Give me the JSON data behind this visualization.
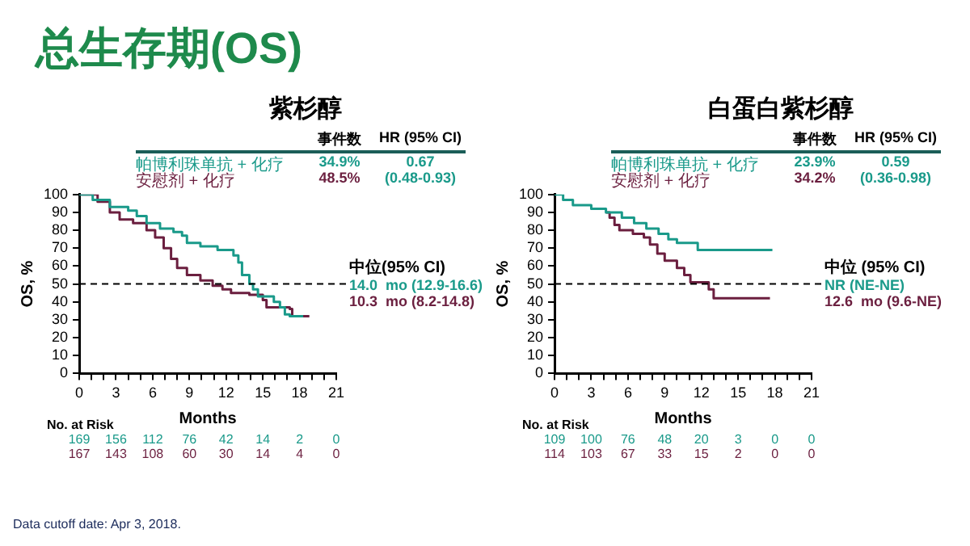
{
  "chart_data": [
    {
      "type": "other",
      "title": "总生存期(OS)",
      "annotations": [
        "Data cutoff date: Apr 3, 2018."
      ]
    },
    {
      "type": "step",
      "title": "紫杉醇",
      "xlabel": "Months",
      "ylabel": "OS, %",
      "xlim": [
        0,
        21
      ],
      "ylim": [
        0,
        100
      ],
      "xticks": [
        0,
        {
          "value": 1,
          "label": null
        },
        {
          "value": 2,
          "label": null
        },
        3,
        {
          "value": 4,
          "label": null
        },
        {
          "value": 5,
          "label": null
        },
        6,
        {
          "value": 7,
          "label": null
        },
        {
          "value": 8,
          "label": null
        },
        9,
        {
          "value": 10,
          "label": null
        },
        {
          "value": 11,
          "label": null
        },
        12,
        {
          "value": 13,
          "label": null
        },
        {
          "value": 14,
          "label": null
        },
        15,
        {
          "value": 16,
          "label": null
        },
        {
          "value": 17,
          "label": null
        },
        18,
        {
          "value": 19,
          "label": null
        },
        {
          "value": 20,
          "label": null
        },
        21
      ],
      "yticks": [
        0,
        10,
        20,
        30,
        40,
        50,
        60,
        70,
        80,
        90,
        100
      ],
      "ref_lines": [
        {
          "axis": "y",
          "value": 50,
          "color": "#000000",
          "line_style": "dashed"
        }
      ],
      "series": [
        {
          "name": "帕博利珠单抗 + 化疗",
          "color": "#1a9a8a",
          "x": [
            0,
            1.1,
            2.5,
            4,
            4.7,
            5.5,
            6.6,
            7.7,
            8.4,
            8.8,
            9.9,
            11.3,
            12.6,
            13,
            13.3,
            13.9,
            14.2,
            14.6,
            15.9,
            16.4,
            16.8,
            17.2,
            18.3
          ],
          "values": [
            100,
            97,
            93,
            91,
            88,
            84,
            81,
            79,
            77,
            73,
            71,
            69,
            66,
            62,
            55,
            50,
            47,
            43,
            40,
            37,
            33,
            32,
            32
          ]
        },
        {
          "name": "安慰剂 + 化疗",
          "color": "#6b1f3f",
          "x": [
            0,
            1.5,
            2.5,
            3.3,
            4.4,
            5.5,
            6.2,
            6.9,
            7.5,
            8,
            8.8,
            9.9,
            10.9,
            11.7,
            12.4,
            13.9,
            15,
            15.3,
            17.2,
            17.4,
            18.8
          ],
          "values": [
            100,
            96,
            90,
            86,
            84,
            80,
            76,
            70,
            64,
            59,
            55,
            52,
            49,
            47,
            45,
            44,
            41,
            37,
            36,
            32,
            32
          ]
        }
      ],
      "annotations": [
        "事件数",
        "HR (95% CI)",
        "34.9%",
        "0.67",
        "(0.48-0.93)",
        "48.5%",
        "中位(95% CI)",
        "14.0  mo (12.9-16.6)",
        "10.3  mo (8.2-14.8)",
        "No. at Risk",
        "169",
        "156",
        "112",
        "76",
        "42",
        "14",
        "2",
        "0",
        "167",
        "143",
        "108",
        "60",
        "30",
        "14",
        "4",
        "0"
      ]
    },
    {
      "type": "step",
      "title": "白蛋白紫杉醇",
      "xlabel": "Months",
      "ylabel": "OS, %",
      "xlim": [
        0,
        21
      ],
      "ylim": [
        0,
        100
      ],
      "xticks": [
        0,
        {
          "value": 1,
          "label": null
        },
        {
          "value": 2,
          "label": null
        },
        3,
        {
          "value": 4,
          "label": null
        },
        {
          "value": 5,
          "label": null
        },
        6,
        {
          "value": 7,
          "label": null
        },
        {
          "value": 8,
          "label": null
        },
        9,
        {
          "value": 10,
          "label": null
        },
        {
          "value": 11,
          "label": null
        },
        12,
        {
          "value": 13,
          "label": null
        },
        {
          "value": 14,
          "label": null
        },
        15,
        {
          "value": 16,
          "label": null
        },
        {
          "value": 17,
          "label": null
        },
        18,
        {
          "value": 19,
          "label": null
        },
        {
          "value": 20,
          "label": null
        },
        21
      ],
      "yticks": [
        0,
        10,
        20,
        30,
        40,
        50,
        60,
        70,
        80,
        90,
        100
      ],
      "ref_lines": [
        {
          "axis": "y",
          "value": 50,
          "color": "#000000",
          "line_style": "dashed"
        }
      ],
      "series": [
        {
          "name": "帕博利珠单抗 + 化疗",
          "color": "#1a9a8a",
          "x": [
            0,
            0.7,
            1.5,
            3,
            4.2,
            5.5,
            6.5,
            7.5,
            8.5,
            9.3,
            10,
            11.7,
            17.8
          ],
          "values": [
            100,
            97,
            94,
            92,
            90,
            87,
            84,
            81,
            78,
            75,
            73,
            69,
            69
          ]
        },
        {
          "name": "安慰剂 + 化疗",
          "color": "#6b1f3f",
          "x": [
            4.2,
            4.5,
            4.9,
            5.3,
            6.4,
            7.3,
            7.8,
            8.4,
            9,
            10,
            10.6,
            11.1,
            12.6,
            13,
            17.6
          ],
          "values": [
            90,
            87,
            83,
            80,
            78,
            76,
            72,
            67,
            63,
            59,
            55,
            51,
            47,
            42,
            42
          ]
        }
      ],
      "annotations": [
        "事件数",
        "HR (95% CI)",
        "23.9%",
        "0.59",
        "(0.36-0.98)",
        "34.2%",
        "中位 (95% CI)",
        "NR (NE-NE)",
        "12.6  mo (9.6-NE)",
        "No. at Risk",
        "109",
        "100",
        "76",
        "48",
        "20",
        "3",
        "0",
        "0",
        "114",
        "103",
        "67",
        "33",
        "15",
        "2",
        "0",
        "0"
      ]
    }
  ]
}
